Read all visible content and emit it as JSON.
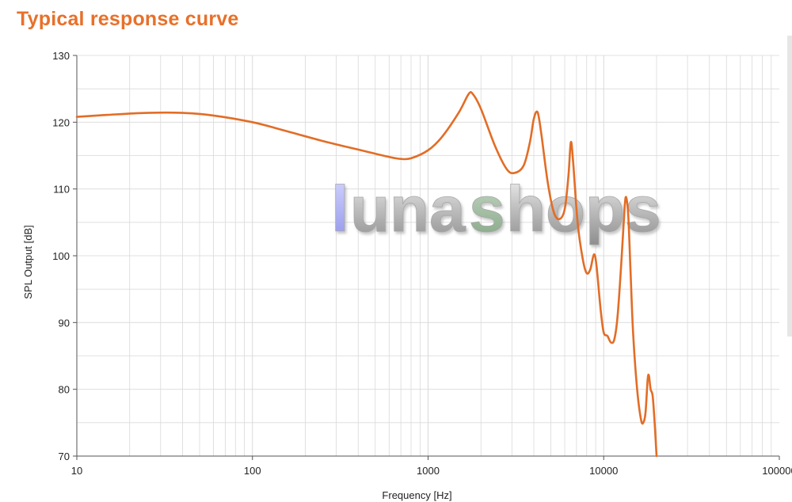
{
  "title": "Typical response curve",
  "colors": {
    "title": "#e8702a",
    "curve": "#e26d26",
    "grid": "#d9d9d9",
    "axis": "#555555"
  },
  "watermark": {
    "text": "lunashops",
    "letters": [
      "l",
      "u",
      "n",
      "a",
      "s",
      "h",
      "o",
      "p",
      "s"
    ]
  },
  "chart_data": {
    "type": "line",
    "title": "Typical response curve",
    "xlabel": "Frequency [Hz]",
    "ylabel": "SPL Output [dB]",
    "xscale": "log",
    "xlim": [
      10,
      100000
    ],
    "ylim": [
      70,
      130
    ],
    "xticks": [
      10,
      100,
      1000,
      10000,
      100000
    ],
    "xtick_labels": [
      "10",
      "100",
      "1000",
      "10000",
      "100000"
    ],
    "yticks": [
      70,
      80,
      90,
      100,
      110,
      120,
      130
    ],
    "grid": true,
    "series": [
      {
        "values": [
          [
            10,
            120.8
          ],
          [
            15,
            121.1
          ],
          [
            25,
            121.4
          ],
          [
            40,
            121.4
          ],
          [
            60,
            121.0
          ],
          [
            100,
            120.0
          ],
          [
            150,
            118.8
          ],
          [
            250,
            117.2
          ],
          [
            400,
            115.9
          ],
          [
            600,
            114.8
          ],
          [
            700,
            114.5
          ],
          [
            800,
            114.6
          ],
          [
            1000,
            115.8
          ],
          [
            1200,
            117.8
          ],
          [
            1500,
            121.5
          ],
          [
            1700,
            124.2
          ],
          [
            1800,
            124.2
          ],
          [
            2000,
            122.0
          ],
          [
            2400,
            116.5
          ],
          [
            2800,
            113.0
          ],
          [
            3100,
            112.4
          ],
          [
            3500,
            113.5
          ],
          [
            3800,
            117.0
          ],
          [
            4000,
            120.5
          ],
          [
            4200,
            121.5
          ],
          [
            4400,
            118.5
          ],
          [
            4800,
            111.0
          ],
          [
            5200,
            106.5
          ],
          [
            5600,
            105.5
          ],
          [
            6000,
            107.0
          ],
          [
            6300,
            112.0
          ],
          [
            6500,
            117.0
          ],
          [
            6700,
            114.0
          ],
          [
            7100,
            105.0
          ],
          [
            7600,
            99.5
          ],
          [
            8000,
            97.4
          ],
          [
            8400,
            98.0
          ],
          [
            8800,
            100.2
          ],
          [
            9100,
            98.5
          ],
          [
            9600,
            92.0
          ],
          [
            10000,
            88.5
          ],
          [
            10500,
            88.0
          ],
          [
            11000,
            87.0
          ],
          [
            11500,
            87.5
          ],
          [
            12000,
            91.0
          ],
          [
            12600,
            99.0
          ],
          [
            13100,
            106.5
          ],
          [
            13400,
            108.8
          ],
          [
            13800,
            106.0
          ],
          [
            14200,
            98.0
          ],
          [
            14700,
            88.5
          ],
          [
            15500,
            80.0
          ],
          [
            16300,
            75.5
          ],
          [
            16800,
            75.0
          ],
          [
            17300,
            76.5
          ],
          [
            17800,
            81.5
          ],
          [
            18100,
            82.0
          ],
          [
            18500,
            80.0
          ],
          [
            19000,
            79.0
          ],
          [
            19500,
            75.0
          ],
          [
            20000,
            70.0
          ]
        ]
      }
    ]
  }
}
